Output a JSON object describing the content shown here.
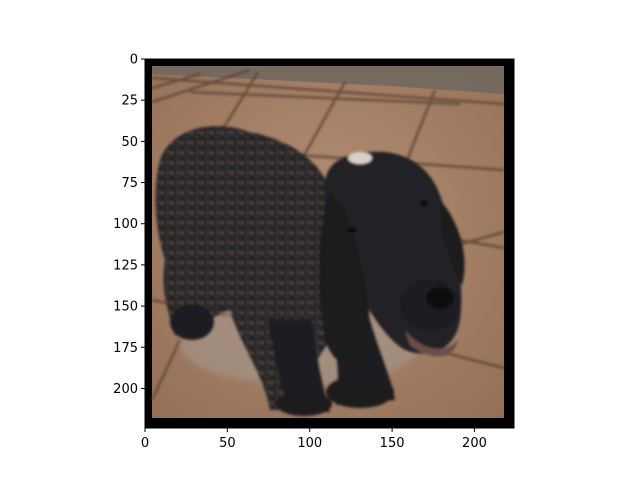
{
  "chart_data": {
    "type": "image",
    "title": "",
    "xlabel": "",
    "ylabel": "",
    "xlim": [
      0,
      224
    ],
    "ylim": [
      224,
      0
    ],
    "x_ticks": [
      0,
      50,
      100,
      150,
      200
    ],
    "y_ticks": [
      0,
      25,
      50,
      75,
      100,
      125,
      150,
      175,
      200
    ],
    "x_tick_labels": [
      "0",
      "50",
      "100",
      "150",
      "200"
    ],
    "y_tick_labels": [
      "0",
      "25",
      "50",
      "75",
      "100",
      "125",
      "150",
      "175",
      "200"
    ],
    "grid": false,
    "legend": "none",
    "image_content": "dog-on-tiled-floor",
    "colors": {
      "frame": "#000000",
      "tile": "#a8856c",
      "tile_light": "#b8967c",
      "grout": "#5a4334",
      "wall": "#6e675f",
      "dog_fur": "#1f2024",
      "dog_fur_light": "#4a4032",
      "shadow": "#9a8f86"
    }
  }
}
